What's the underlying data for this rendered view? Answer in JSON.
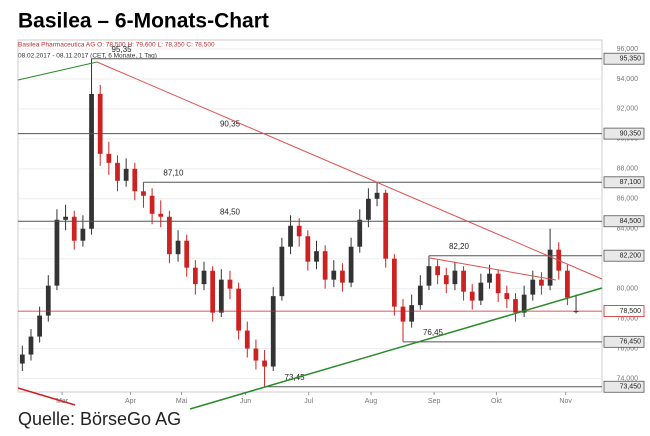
{
  "chart_data": {
    "type": "candlestick",
    "title": "Basilea – 6-Monats-Chart",
    "subtitle": "Basilea Pharmaceutica AG  O: 78,500  H: 79,600  L: 78,350  C: 78,500",
    "period": "08.02.2017 - 08.11.2017 (CET, 6 Monate, 1 Tag)",
    "source": "Quelle: BörseGo AG",
    "up_color": "#333333",
    "down_color": "#cc2222",
    "grid": true,
    "open": [
      75.0,
      75.6,
      76.8,
      78.2,
      80.2,
      84.6,
      84.8,
      83.2,
      84.0,
      93.0,
      89.0,
      88.4,
      87.2,
      88.0,
      86.5,
      86.2,
      85.0,
      84.8,
      82.3,
      83.2,
      81.4,
      80.3,
      81.2,
      78.4,
      80.6,
      80.0,
      77.2,
      76.0,
      75.2,
      74.8,
      79.5,
      82.8,
      84.2,
      83.5,
      81.8,
      82.5,
      80.6,
      81.2,
      80.4,
      82.8,
      84.6,
      86.0,
      86.4,
      82.0,
      78.8,
      77.8,
      78.9,
      80.2,
      81.5,
      80.9,
      80.3,
      81.2,
      79.8,
      79.2,
      80.4,
      81.0,
      79.7,
      79.3,
      78.4,
      79.6,
      80.6,
      80.2,
      82.6,
      81.2,
      78.5
    ],
    "high": [
      76.2,
      77.3,
      78.8,
      80.9,
      85.3,
      85.6,
      85.2,
      84.9,
      95.35,
      93.6,
      89.8,
      88.9,
      88.7,
      88.4,
      87.1,
      86.7,
      85.9,
      85.2,
      83.9,
      83.6,
      81.9,
      81.8,
      81.5,
      81.3,
      81.2,
      80.4,
      77.8,
      76.6,
      75.9,
      80.1,
      83.4,
      84.9,
      84.7,
      83.9,
      83.2,
      82.9,
      81.9,
      81.7,
      83.4,
      85.3,
      86.7,
      87.1,
      86.6,
      82.3,
      79.3,
      79.6,
      80.9,
      82.2,
      81.9,
      81.4,
      81.8,
      81.5,
      80.3,
      81.0,
      81.6,
      81.3,
      80.2,
      79.7,
      80.2,
      81.2,
      81.1,
      84.0,
      83.1,
      81.6,
      79.6
    ],
    "low": [
      74.5,
      75.2,
      76.4,
      77.8,
      79.9,
      83.9,
      82.6,
      82.8,
      83.6,
      88.2,
      87.6,
      86.5,
      86.8,
      85.9,
      85.4,
      84.3,
      84.1,
      81.7,
      81.8,
      80.8,
      79.6,
      79.9,
      77.8,
      78.1,
      79.3,
      76.6,
      75.4,
      74.6,
      73.45,
      74.5,
      79.2,
      82.3,
      82.8,
      81.2,
      81.3,
      80.0,
      80.1,
      79.8,
      80.1,
      82.4,
      84.1,
      85.5,
      81.4,
      78.2,
      76.45,
      77.4,
      78.6,
      79.9,
      80.3,
      79.7,
      79.9,
      79.2,
      78.6,
      78.9,
      80.0,
      79.1,
      78.7,
      77.8,
      78.1,
      79.2,
      79.6,
      79.9,
      80.6,
      78.9,
      78.35
    ],
    "close": [
      75.6,
      76.8,
      78.2,
      80.2,
      84.6,
      84.8,
      83.2,
      84.0,
      93.0,
      89.0,
      88.4,
      87.2,
      88.0,
      86.5,
      86.2,
      85.0,
      84.8,
      82.3,
      83.2,
      81.4,
      80.3,
      81.2,
      78.4,
      80.6,
      80.0,
      77.2,
      76.0,
      75.2,
      74.8,
      79.5,
      82.8,
      84.2,
      83.5,
      81.8,
      82.5,
      80.6,
      81.2,
      80.4,
      82.8,
      84.6,
      86.0,
      86.4,
      82.0,
      78.8,
      77.8,
      78.9,
      80.2,
      81.5,
      80.9,
      80.3,
      81.2,
      79.8,
      79.2,
      80.4,
      81.0,
      79.7,
      79.3,
      78.4,
      79.6,
      80.6,
      80.2,
      82.6,
      81.2,
      79.4,
      78.5
    ],
    "xlim": [
      -0.5,
      67.0
    ],
    "xticks": [
      {
        "value": 4.6,
        "label": "Mar"
      },
      {
        "value": 12.5,
        "label": "Apr"
      },
      {
        "value": 18.4,
        "label": "Mai"
      },
      {
        "value": 25.8,
        "label": "Jun"
      },
      {
        "value": 33.1,
        "label": "Jul"
      },
      {
        "value": 40.3,
        "label": "Aug"
      },
      {
        "value": 47.6,
        "label": "Sep"
      },
      {
        "value": 54.8,
        "label": "Okt"
      },
      {
        "value": 62.8,
        "label": "Nov"
      }
    ],
    "ylim": [
      73.1,
      96.6
    ],
    "yticks": [
      {
        "value": 74,
        "label": "74,000"
      },
      {
        "value": 76,
        "label": "76,000"
      },
      {
        "value": 78,
        "label": "78,000"
      },
      {
        "value": 80,
        "label": "80,000"
      },
      {
        "value": 82,
        "label": "82,000"
      },
      {
        "value": 84,
        "label": "84,000"
      },
      {
        "value": 86,
        "label": "86,000"
      },
      {
        "value": 88,
        "label": "88,000"
      },
      {
        "value": 90,
        "label": "90,000"
      },
      {
        "value": 92,
        "label": "92,000"
      },
      {
        "value": 94,
        "label": "94,000"
      },
      {
        "value": 96,
        "label": "96,000"
      }
    ],
    "levels": [
      {
        "value": 95.35,
        "label": "95,35",
        "tag": "95,350"
      },
      {
        "value": 90.35,
        "label": "90,35",
        "tag": "90,350"
      },
      {
        "value": 87.1,
        "label": "87,10",
        "tag": "87,100"
      },
      {
        "value": 84.5,
        "label": "84,50",
        "tag": "84,500"
      },
      {
        "value": 82.2,
        "label": "82,20",
        "tag": "82,200"
      },
      {
        "value": 78.5,
        "tag": "78,500",
        "color": "#cc2222"
      },
      {
        "value": 76.45,
        "label": "76,45",
        "tag": "76,450"
      },
      {
        "value": 73.45,
        "label": "73,45",
        "tag": "73,450"
      }
    ]
  }
}
